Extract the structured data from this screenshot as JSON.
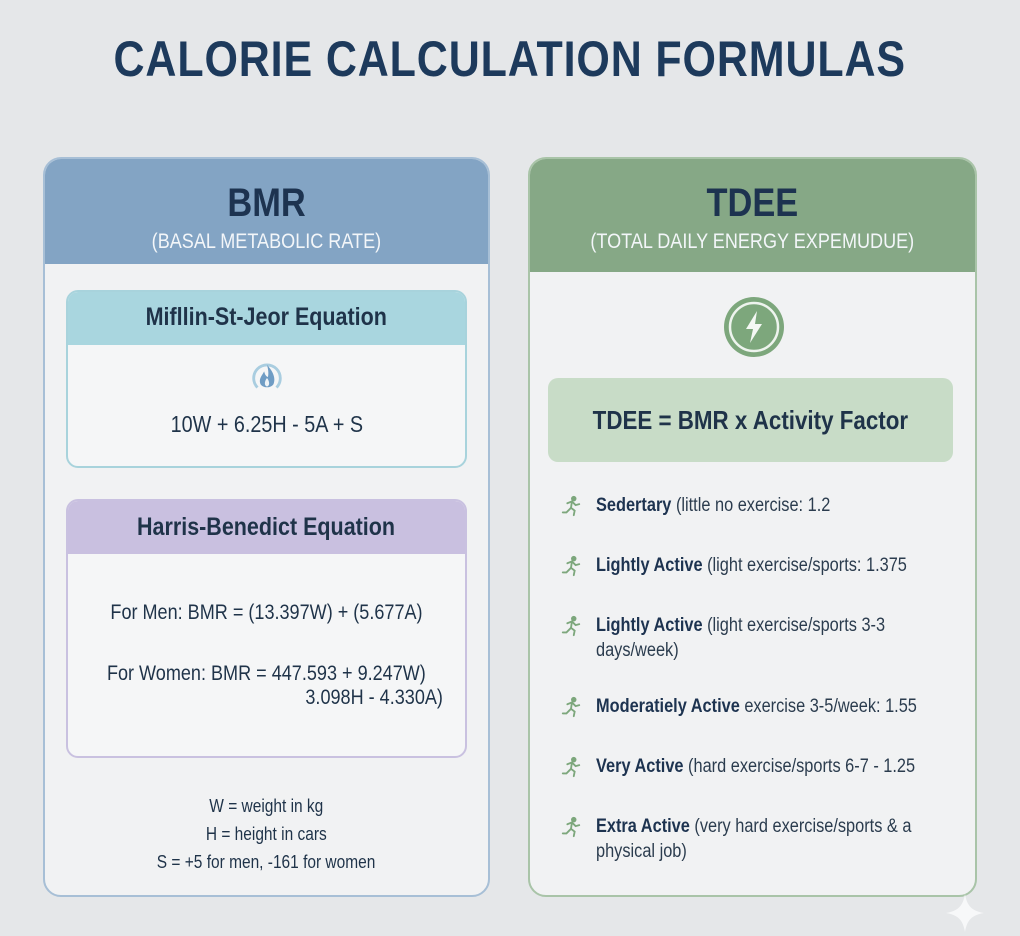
{
  "title": "CALORIE CALCULATION FORMULAS",
  "bmr": {
    "title": "BMR",
    "subtitle": "(BASAL METABOLIC RATE)",
    "mifflin": {
      "title": "Mifllin-St-Jeor Equation",
      "icon": "flame-icon",
      "formula": "10W + 6.25H - 5A + S"
    },
    "harris": {
      "title": "Harris-Benedict Equation",
      "men": "For Men: BMR = (13.397W) + (5.677A)",
      "women": "For Women: BMR = 447.593 + 9.247W)",
      "women_cont": "3.098H - 4.330A)"
    },
    "legend": [
      "W = weight in kg",
      "H = height in cars",
      "S = +5 for men, -161 for women"
    ]
  },
  "tdee": {
    "title": "TDEE",
    "subtitle": "(TOTAL DAILY ENERGY EXPEMUDUE)",
    "icon": "lightning-icon",
    "formula": "TDEE = BMR x Activity Factor",
    "levels": [
      {
        "name": "Sedertary",
        "desc": " (little no exercise: 1.2"
      },
      {
        "name": "Lightly Active",
        "desc": " (light exercise/sports: 1.375"
      },
      {
        "name": "Lightly Active",
        "desc": " (light exercise/sports 3-3 days/week)"
      },
      {
        "name": "Moderatiely Active",
        "desc": " exercise 3-5/week:  1.55"
      },
      {
        "name": "Very Active",
        "desc": " (hard exercise/sports 6-7  - 1.25"
      },
      {
        "name": "Extra Active",
        "desc": " (very hard exercise/sports & a physical job)"
      }
    ]
  },
  "colors": {
    "bmr_header": "#83a4c4",
    "tdee_header": "#86a886",
    "mifflin": "#a9d6df",
    "harris": "#c9c0e0",
    "tdee_formula": "#c8dcc7",
    "icon_green": "#7da77c"
  }
}
